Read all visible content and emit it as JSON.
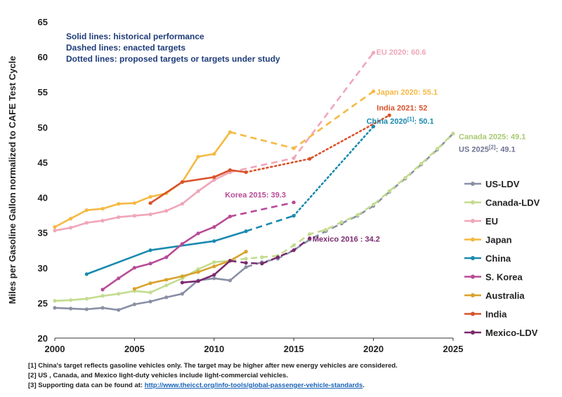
{
  "chart_data": {
    "type": "line",
    "ylabel": "Miles per Gasoline Gallon normalized to CAFE Test Cycle",
    "xlabel": "",
    "xlim": [
      2000,
      2025
    ],
    "ylim": [
      20,
      65
    ],
    "xticks": [
      2000,
      2005,
      2010,
      2015,
      2020,
      2025
    ],
    "yticks": [
      20,
      25,
      30,
      35,
      40,
      45,
      50,
      55,
      60,
      65
    ],
    "grid": false,
    "legend_position": "right",
    "notes": [
      "Solid lines: historical performance",
      "Dashed lines: enacted targets",
      "Dotted lines: proposed targets or targets under study"
    ],
    "series": [
      {
        "name": "US-LDV",
        "color": "#8a8fa6",
        "historical": [
          [
            2000,
            24.3
          ],
          [
            2001,
            24.2
          ],
          [
            2002,
            24.1
          ],
          [
            2003,
            24.3
          ],
          [
            2004,
            24.0
          ],
          [
            2005,
            24.8
          ],
          [
            2006,
            25.2
          ],
          [
            2007,
            25.8
          ],
          [
            2008,
            26.3
          ],
          [
            2009,
            28.2
          ],
          [
            2010,
            28.5
          ],
          [
            2011,
            28.2
          ],
          [
            2012,
            30.1
          ]
        ],
        "target": [
          [
            2012,
            30.1
          ],
          [
            2013,
            30.8
          ],
          [
            2014,
            31.3
          ],
          [
            2015,
            32.5
          ],
          [
            2016,
            34.0
          ],
          [
            2017,
            35.2
          ],
          [
            2018,
            36.3
          ],
          [
            2019,
            37.4
          ],
          [
            2020,
            38.8
          ],
          [
            2021,
            40.8
          ],
          [
            2022,
            42.7
          ],
          [
            2023,
            44.7
          ],
          [
            2024,
            46.8
          ],
          [
            2025,
            49.1
          ]
        ],
        "target_style": "dashed"
      },
      {
        "name": "Canada-LDV",
        "color": "#c3dc8f",
        "historical": [
          [
            2000,
            25.3
          ],
          [
            2001,
            25.4
          ],
          [
            2002,
            25.6
          ],
          [
            2003,
            26.0
          ],
          [
            2004,
            26.3
          ],
          [
            2005,
            26.7
          ],
          [
            2006,
            26.5
          ],
          [
            2007,
            27.5
          ],
          [
            2008,
            28.5
          ],
          [
            2009,
            29.8
          ],
          [
            2010,
            30.8
          ],
          [
            2011,
            31.0
          ]
        ],
        "target": [
          [
            2011,
            31.0
          ],
          [
            2012,
            31.3
          ],
          [
            2013,
            31.5
          ],
          [
            2014,
            31.7
          ],
          [
            2015,
            33.2
          ],
          [
            2016,
            34.8
          ],
          [
            2017,
            35.4
          ],
          [
            2018,
            36.5
          ],
          [
            2019,
            37.5
          ],
          [
            2020,
            39.0
          ],
          [
            2021,
            40.9
          ],
          [
            2022,
            42.8
          ],
          [
            2023,
            44.8
          ],
          [
            2024,
            46.9
          ],
          [
            2025,
            49.1
          ]
        ],
        "target_style": "dashed"
      },
      {
        "name": "EU",
        "color": "#f0a6b8",
        "historical": [
          [
            2000,
            35.3
          ],
          [
            2001,
            35.7
          ],
          [
            2002,
            36.4
          ],
          [
            2003,
            36.7
          ],
          [
            2004,
            37.2
          ],
          [
            2005,
            37.4
          ],
          [
            2006,
            37.6
          ],
          [
            2007,
            38.1
          ],
          [
            2008,
            39.1
          ],
          [
            2009,
            40.9
          ],
          [
            2010,
            42.5
          ],
          [
            2011,
            43.6
          ]
        ],
        "target": [
          [
            2011,
            43.6
          ],
          [
            2015,
            45.6
          ],
          [
            2020,
            60.6
          ]
        ],
        "target_style": "dashed"
      },
      {
        "name": "Japan",
        "color": "#f5b942",
        "historical": [
          [
            2000,
            35.8
          ],
          [
            2001,
            37.0
          ],
          [
            2002,
            38.2
          ],
          [
            2003,
            38.4
          ],
          [
            2004,
            39.1
          ],
          [
            2005,
            39.2
          ],
          [
            2006,
            40.1
          ],
          [
            2007,
            40.6
          ],
          [
            2008,
            42.2
          ],
          [
            2009,
            45.8
          ],
          [
            2010,
            46.2
          ],
          [
            2011,
            49.3
          ]
        ],
        "target": [
          [
            2011,
            49.3
          ],
          [
            2015,
            47.0
          ],
          [
            2020,
            55.1
          ]
        ],
        "target_style": "dashed"
      },
      {
        "name": "China",
        "color": "#1a8ab0",
        "historical": [
          [
            2002,
            29.1
          ],
          [
            2006,
            32.5
          ],
          [
            2010,
            33.8
          ],
          [
            2012,
            35.2
          ]
        ],
        "target": [
          [
            2012,
            35.2
          ],
          [
            2015,
            37.4
          ],
          [
            2020,
            50.1
          ]
        ],
        "target_style": "dashed-then-dotted"
      },
      {
        "name": "S. Korea",
        "color": "#b84b96",
        "historical": [
          [
            2003,
            26.9
          ],
          [
            2004,
            28.5
          ],
          [
            2005,
            30.0
          ],
          [
            2006,
            30.6
          ],
          [
            2007,
            31.5
          ],
          [
            2008,
            33.4
          ],
          [
            2009,
            34.9
          ],
          [
            2010,
            35.8
          ],
          [
            2011,
            37.3
          ]
        ],
        "target": [
          [
            2011,
            37.3
          ],
          [
            2015,
            39.3
          ]
        ],
        "target_style": "dashed"
      },
      {
        "name": "Australia",
        "color": "#d9a22b",
        "historical": [
          [
            2005,
            27.0
          ],
          [
            2006,
            27.8
          ],
          [
            2007,
            28.3
          ],
          [
            2008,
            28.8
          ],
          [
            2009,
            29.4
          ],
          [
            2010,
            30.2
          ],
          [
            2011,
            31.0
          ],
          [
            2012,
            32.3
          ]
        ],
        "target": [],
        "target_style": "none"
      },
      {
        "name": "India",
        "color": "#d9532b",
        "historical": [
          [
            2006,
            39.2
          ],
          [
            2008,
            42.2
          ],
          [
            2010,
            42.9
          ],
          [
            2011,
            43.9
          ],
          [
            2012,
            43.6
          ]
        ],
        "target": [
          [
            2012,
            43.6
          ],
          [
            2016,
            45.5
          ],
          [
            2021,
            51.7
          ]
        ],
        "target_style": "dotted"
      },
      {
        "name": "Mexico-LDV",
        "color": "#7a2a6e",
        "historical": [
          [
            2008,
            27.9
          ],
          [
            2009,
            28.1
          ],
          [
            2010,
            29.0
          ],
          [
            2011,
            31.0
          ]
        ],
        "target": [
          [
            2011,
            31.0
          ],
          [
            2012,
            30.7
          ],
          [
            2013,
            30.6
          ],
          [
            2014,
            31.5
          ],
          [
            2015,
            32.5
          ],
          [
            2016,
            34.2
          ]
        ],
        "target_style": "dashed"
      }
    ],
    "annotations": [
      {
        "text": "EU 2020: 60.6",
        "x": 2020,
        "y": 60.6,
        "color": "#f0a6b8"
      },
      {
        "text": "Japan 2020: 55.1",
        "x": 2020,
        "y": 55.1,
        "color": "#f5b942"
      },
      {
        "text": "India 2021: 52",
        "x": 2021,
        "y": 52.0,
        "color": "#d9532b"
      },
      {
        "text": "China 2020",
        "sup": "[1]",
        "tail": ": 50.1",
        "x": 2020,
        "y": 50.1,
        "color": "#1a8ab0"
      },
      {
        "text": "Canada 2025: 49.1",
        "x": 2025,
        "y": 49.1,
        "color": "#a8c96f"
      },
      {
        "text": "US 2025",
        "sup": "[2]",
        "tail": ": 49.1",
        "x": 2025,
        "y": 49.1,
        "color": "#6e7391"
      },
      {
        "text": "Korea 2015: 39.3",
        "x": 2015,
        "y": 39.3,
        "color": "#b84b96"
      },
      {
        "text": "Mexico 2016 : 34.2",
        "x": 2016,
        "y": 34.2,
        "color": "#7a2a6e"
      }
    ]
  },
  "footnotes": {
    "f1": "[1] China's target reflects gasoline vehicles only. The target may be higher after new energy vehicles are considered.",
    "f2": "[2] US , Canada, and Mexico light-duty vehicles include light-commercial vehicles.",
    "f3_prefix": "[3] Supporting data can be found at: ",
    "f3_link": "http://www.theicct.org/info-tools/global-passenger-vehicle-standards",
    "f3_suffix": "."
  }
}
